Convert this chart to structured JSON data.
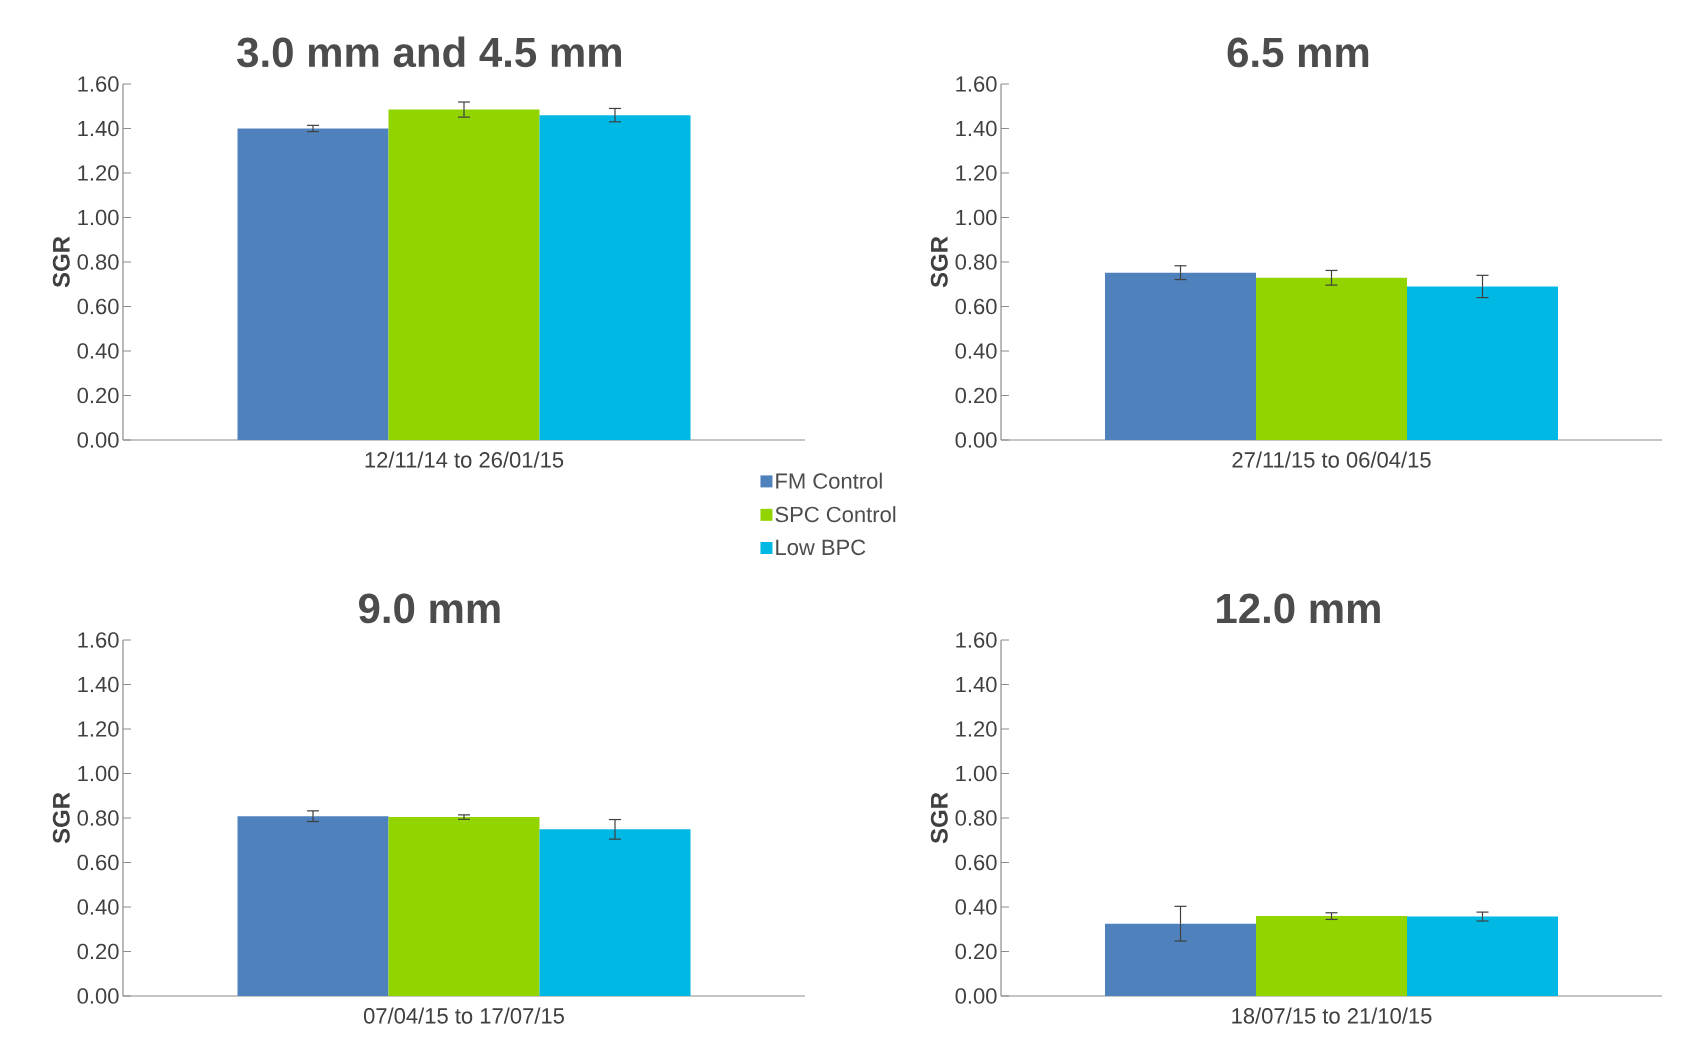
{
  "chart_data": [
    {
      "type": "bar",
      "title": "3.0 mm and 4.5 mm",
      "ylabel": "SGR",
      "categories": [
        "12/11/14 to 26/01/15"
      ],
      "ylim": [
        0,
        1.6
      ],
      "yticks": [
        {
          "value": 0,
          "label": "0.00"
        },
        {
          "value": 0.2,
          "label": "0.20"
        },
        {
          "value": 0.4,
          "label": "0.40"
        },
        {
          "value": 0.6,
          "label": "0.60"
        },
        {
          "value": 0.8,
          "label": "0.80"
        },
        {
          "value": 1.0,
          "label": "1.00"
        },
        {
          "value": 1.2,
          "label": "1.20"
        },
        {
          "value": 1.4,
          "label": "1.40"
        },
        {
          "value": 1.6,
          "label": "1.60"
        }
      ],
      "legend": "bottom right",
      "series": [
        {
          "name": "FM Control",
          "color": "#4f81bd",
          "values": [
            1.4
          ],
          "errors": [
            0.014
          ]
        },
        {
          "name": "SPC Control",
          "color": "#92d400",
          "values": [
            1.485
          ],
          "errors": [
            0.034
          ]
        },
        {
          "name": "Low BPC",
          "color": "#00b8e4",
          "values": [
            1.46
          ],
          "errors": [
            0.03
          ]
        }
      ]
    },
    {
      "type": "bar",
      "title": "6.5 mm",
      "ylabel": "SGR",
      "categories": [
        "27/11/15 to 06/04/15"
      ],
      "ylim": [
        0,
        1.6
      ],
      "yticks": [
        {
          "value": 0,
          "label": "0.00"
        },
        {
          "value": 0.2,
          "label": "0.20"
        },
        {
          "value": 0.4,
          "label": "0.40"
        },
        {
          "value": 0.6,
          "label": "0.60"
        },
        {
          "value": 0.8,
          "label": "0.80"
        },
        {
          "value": 1.0,
          "label": "1.00"
        },
        {
          "value": 1.2,
          "label": "1.20"
        },
        {
          "value": 1.4,
          "label": "1.40"
        },
        {
          "value": 1.6,
          "label": "1.60"
        }
      ],
      "series": [
        {
          "color": "#4f81bd",
          "values": [
            0.752
          ],
          "errors": [
            0.031
          ]
        },
        {
          "color": "#92d400",
          "values": [
            0.729
          ],
          "errors": [
            0.033
          ]
        },
        {
          "color": "#00b8e4",
          "values": [
            0.69
          ],
          "errors": [
            0.05
          ]
        }
      ]
    },
    {
      "type": "bar",
      "title": "9.0 mm",
      "ylabel": "SGR",
      "categories": [
        "07/04/15 to 17/07/15"
      ],
      "ylim": [
        0,
        1.6
      ],
      "yticks": [
        {
          "value": 0,
          "label": "0.00"
        },
        {
          "value": 0.2,
          "label": "0.20"
        },
        {
          "value": 0.4,
          "label": "0.40"
        },
        {
          "value": 0.6,
          "label": "0.60"
        },
        {
          "value": 0.8,
          "label": "0.80"
        },
        {
          "value": 1.0,
          "label": "1.00"
        },
        {
          "value": 1.2,
          "label": "1.20"
        },
        {
          "value": 1.4,
          "label": "1.40"
        },
        {
          "value": 1.6,
          "label": "1.60"
        }
      ],
      "series": [
        {
          "color": "#4f81bd",
          "values": [
            0.808
          ],
          "errors": [
            0.024
          ]
        },
        {
          "color": "#92d400",
          "values": [
            0.804
          ],
          "errors": [
            0.01
          ]
        },
        {
          "color": "#00b8e4",
          "values": [
            0.749
          ],
          "errors": [
            0.044
          ]
        }
      ]
    },
    {
      "type": "bar",
      "title": "12.0 mm",
      "ylabel": "SGR",
      "categories": [
        "18/07/15 to 21/10/15"
      ],
      "ylim": [
        0,
        1.6
      ],
      "yticks": [
        {
          "value": 0,
          "label": "0.00"
        },
        {
          "value": 0.2,
          "label": "0.20"
        },
        {
          "value": 0.4,
          "label": "0.40"
        },
        {
          "value": 0.6,
          "label": "0.60"
        },
        {
          "value": 0.8,
          "label": "0.80"
        },
        {
          "value": 1.0,
          "label": "1.00"
        },
        {
          "value": 1.2,
          "label": "1.20"
        },
        {
          "value": 1.4,
          "label": "1.40"
        },
        {
          "value": 1.6,
          "label": "1.60"
        }
      ],
      "series": [
        {
          "color": "#4f81bd",
          "values": [
            0.325
          ],
          "errors": [
            0.078
          ]
        },
        {
          "color": "#92d400",
          "values": [
            0.359
          ],
          "errors": [
            0.015
          ]
        },
        {
          "color": "#00b8e4",
          "values": [
            0.357
          ],
          "errors": [
            0.02
          ]
        }
      ]
    }
  ]
}
